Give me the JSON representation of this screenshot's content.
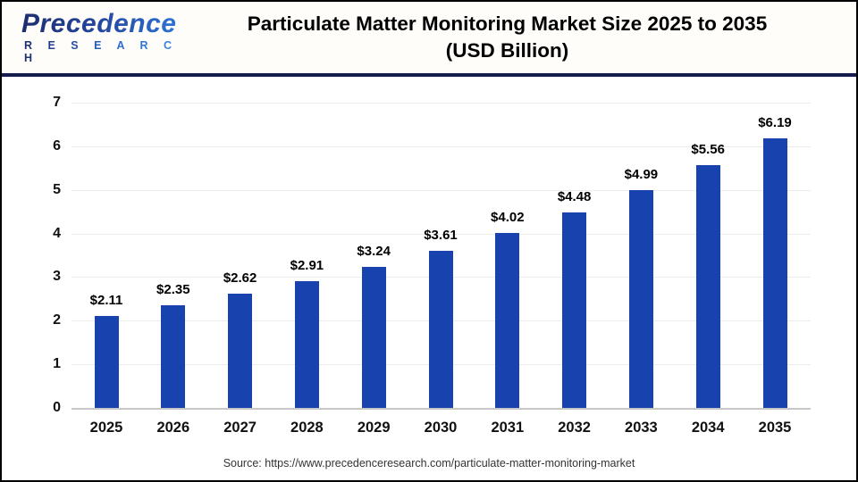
{
  "header": {
    "logo_line1": "Precedence",
    "logo_line2": "R E S E A R C H",
    "title_line1": "Particulate Matter Monitoring Market Size 2025 to 2035",
    "title_line2": "(USD Billion)"
  },
  "chart_data": {
    "type": "bar",
    "title": "Particulate Matter Monitoring Market Size 2025 to 2035 (USD Billion)",
    "categories": [
      "2025",
      "2026",
      "2027",
      "2028",
      "2029",
      "2030",
      "2031",
      "2032",
      "2033",
      "2034",
      "2035"
    ],
    "values": [
      2.11,
      2.35,
      2.62,
      2.91,
      3.24,
      3.61,
      4.02,
      4.48,
      4.99,
      5.56,
      6.19
    ],
    "value_labels": [
      "$2.11",
      "$2.35",
      "$2.62",
      "$2.91",
      "$3.24",
      "$3.61",
      "$4.02",
      "$4.48",
      "$4.99",
      "$5.56",
      "$6.19"
    ],
    "xlabel": "",
    "ylabel": "",
    "ylim": [
      0,
      7
    ],
    "ytick_step": 1,
    "yticks": [
      "0",
      "1",
      "2",
      "3",
      "4",
      "5",
      "6",
      "7"
    ],
    "grid": true,
    "legend": "none",
    "bar_color": "#1843AE"
  },
  "footer": {
    "source": "Source: https://www.precedenceresearch.com/particulate-matter-monitoring-market"
  }
}
